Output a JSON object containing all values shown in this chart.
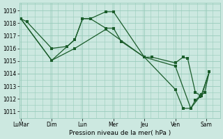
{
  "xlabel": "Pression niveau de la mer( hPa )",
  "background_color": "#cce8e0",
  "grid_color": "#99ccbb",
  "line_color": "#1a5c2a",
  "ylim": [
    1010.5,
    1019.6
  ],
  "yticks": [
    1011,
    1012,
    1013,
    1014,
    1015,
    1016,
    1017,
    1018,
    1019
  ],
  "xtick_labels": [
    "LuMar",
    "Dim",
    "Lun",
    "Mer",
    "Jeu",
    "Ven",
    "Sam"
  ],
  "xtick_positions": [
    0,
    2,
    4,
    6,
    8,
    10,
    12
  ],
  "xlim": [
    -0.1,
    12.8
  ],
  "series1_x": [
    0,
    0.4,
    2.0,
    3.0,
    3.5,
    4.0,
    4.5,
    5.5,
    6.0,
    6.5,
    8.0,
    8.5,
    10.0,
    10.5,
    10.8,
    11.3,
    11.7,
    12.2
  ],
  "series1_y": [
    1018.35,
    1018.1,
    1016.0,
    1016.15,
    1016.7,
    1018.35,
    1018.35,
    1017.6,
    1017.6,
    1016.55,
    1015.3,
    1015.3,
    1014.85,
    1015.3,
    1015.2,
    1012.5,
    1012.25,
    1014.15
  ],
  "series2_x": [
    0,
    2.0,
    3.5,
    4.0,
    4.5,
    5.5,
    6.0,
    8.0,
    10.0,
    10.5,
    11.0,
    11.3,
    11.6,
    11.9,
    12.2
  ],
  "series2_y": [
    1018.35,
    1015.05,
    1016.7,
    1018.35,
    1018.35,
    1018.9,
    1018.9,
    1015.3,
    1012.75,
    1011.25,
    1011.25,
    1011.9,
    1012.2,
    1012.5,
    1014.15
  ],
  "series3_x": [
    0,
    2.0,
    3.5,
    5.5,
    8.0,
    10.0,
    11.0,
    11.7,
    12.2
  ],
  "series3_y": [
    1018.35,
    1015.05,
    1016.0,
    1017.5,
    1015.3,
    1014.6,
    1011.25,
    1012.35,
    1014.15
  ]
}
